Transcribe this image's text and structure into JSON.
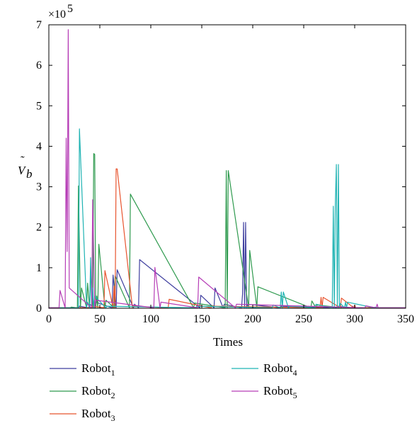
{
  "chart_data": {
    "type": "line",
    "title": "",
    "xlabel": "Times",
    "ylabel": "Ṽ_b",
    "ylabel_base": "V",
    "ylabel_accent": "˜",
    "ylabel_sub": "b",
    "y_multiplier": "×10",
    "y_multiplier_exp": "5",
    "xlim": [
      0,
      350
    ],
    "ylim": [
      0,
      7
    ],
    "x_ticks": [
      "0",
      "50",
      "100",
      "150",
      "200",
      "250",
      "300",
      "350"
    ],
    "y_ticks": [
      "0",
      "1",
      "2",
      "3",
      "4",
      "5",
      "6",
      "7"
    ],
    "legend_position": "bottom",
    "series": [
      {
        "name": "Robot1",
        "name_base": "Robot",
        "name_sub": "1",
        "color": "#3f3f9f",
        "peaks": [
          [
            30,
            0.05
          ],
          [
            40,
            0.1
          ],
          [
            46,
            0.15
          ],
          [
            63,
            0.82
          ],
          [
            67,
            0.95
          ],
          [
            84,
            0.1
          ],
          [
            89,
            1.2
          ],
          [
            149,
            0.32
          ],
          [
            163,
            0.5
          ],
          [
            172,
            0.1
          ],
          [
            190,
            0.35
          ],
          [
            191,
            2.12
          ],
          [
            193,
            2.12
          ],
          [
            195,
            0.1
          ],
          [
            228,
            0.05
          ],
          [
            283,
            0.05
          ],
          [
            298,
            0.05
          ]
        ]
      },
      {
        "name": "Robot2",
        "name_base": "Robot",
        "name_sub": "2",
        "color": "#2e9a4e",
        "peaks": [
          [
            22,
            0.03
          ],
          [
            29,
            3.02
          ],
          [
            32,
            0.5
          ],
          [
            38,
            0.62
          ],
          [
            41,
            0.9
          ],
          [
            44,
            3.82
          ],
          [
            45,
            3.8
          ],
          [
            47,
            0.3
          ],
          [
            49,
            1.58
          ],
          [
            56,
            0.2
          ],
          [
            65,
            0.8
          ],
          [
            80,
            2.82
          ],
          [
            143,
            0.13
          ],
          [
            174,
            3.4
          ],
          [
            176,
            3.4
          ],
          [
            197,
            1.43
          ],
          [
            205,
            0.53
          ],
          [
            258,
            0.18
          ],
          [
            263,
            0.08
          ],
          [
            288,
            0.03
          ]
        ]
      },
      {
        "name": "Robot3",
        "name_base": "Robot",
        "name_sub": "3",
        "color": "#e8542e",
        "peaks": [
          [
            43,
            0.05
          ],
          [
            55,
            0.93
          ],
          [
            64,
            0.55
          ],
          [
            66,
            3.44
          ],
          [
            67,
            3.44
          ],
          [
            83,
            0.05
          ],
          [
            118,
            0.22
          ],
          [
            160,
            0.05
          ],
          [
            267,
            0.27
          ],
          [
            269,
            0.27
          ],
          [
            287,
            0.25
          ],
          [
            300,
            0.08
          ]
        ]
      },
      {
        "name": "Robot4",
        "name_base": "Robot",
        "name_sub": "4",
        "color": "#1fb3b3",
        "peaks": [
          [
            30,
            4.43
          ],
          [
            38,
            0.15
          ],
          [
            41,
            1.25
          ],
          [
            43,
            0.5
          ],
          [
            45,
            0.3
          ],
          [
            57,
            0.05
          ],
          [
            145,
            0.05
          ],
          [
            220,
            0.08
          ],
          [
            228,
            0.4
          ],
          [
            230,
            0.4
          ],
          [
            236,
            0.05
          ],
          [
            262,
            0.1
          ],
          [
            279,
            2.52
          ],
          [
            281,
            2.52
          ],
          [
            282,
            3.55
          ],
          [
            284,
            3.55
          ],
          [
            286,
            0.12
          ],
          [
            291,
            0.15
          ],
          [
            293,
            0.15
          ],
          [
            320,
            0.03
          ]
        ]
      },
      {
        "name": "Robot5",
        "name_base": "Robot",
        "name_sub": "5",
        "color": "#b63db6",
        "peaks": [
          [
            11,
            0.44
          ],
          [
            17,
            4.2
          ],
          [
            18,
            1.4
          ],
          [
            19,
            6.88
          ],
          [
            20,
            0.5
          ],
          [
            43,
            2.68
          ],
          [
            46,
            0.2
          ],
          [
            104,
            1.01
          ],
          [
            110,
            0.15
          ],
          [
            147,
            0.77
          ],
          [
            184,
            0.1
          ],
          [
            311,
            0.06
          ],
          [
            322,
            0.1
          ]
        ]
      }
    ]
  }
}
